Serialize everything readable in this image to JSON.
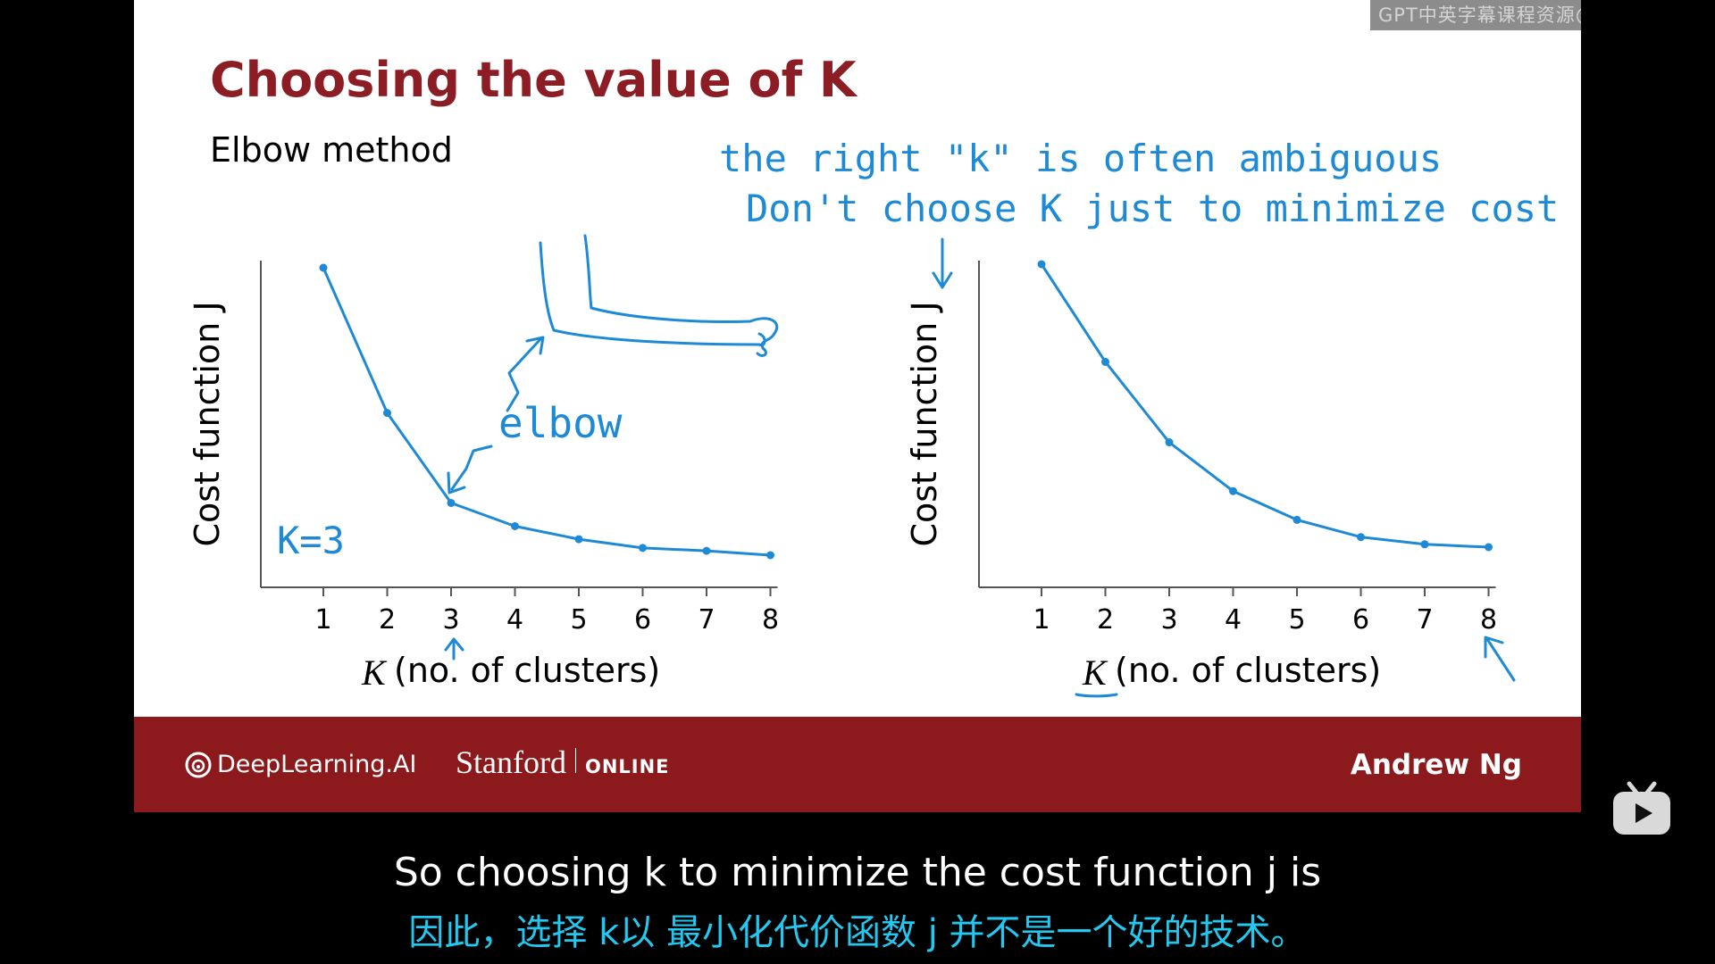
{
  "watermark": "GPT中英字幕课程资源@bilibili.com",
  "slide": {
    "title": "Choosing the value of K",
    "subtitle": "Elbow method",
    "annotations": {
      "ambiguous": "the right \"k\" is often ambiguous",
      "dont_choose": "Don't choose K just to minimize cost J",
      "elbow": "elbow",
      "k_eq": "K=3"
    }
  },
  "chart_data": [
    {
      "type": "line",
      "x": [
        1,
        2,
        3,
        4,
        5,
        6,
        7,
        8
      ],
      "y": [
        100,
        50,
        19,
        11,
        6.5,
        3.5,
        2.5,
        1
      ],
      "xlabel_var": "K",
      "xlabel": "(no. of clusters)",
      "ylabel": "Cost function J",
      "ticks": [
        "1",
        "2",
        "3",
        "4",
        "5",
        "6",
        "7",
        "8"
      ],
      "ylim": [
        0,
        110
      ],
      "grid": false
    },
    {
      "type": "line",
      "x": [
        1,
        2,
        3,
        4,
        5,
        6,
        7,
        8
      ],
      "y": [
        100,
        66,
        38,
        21,
        11,
        5,
        2.5,
        1.5
      ],
      "xlabel_var": "K",
      "xlabel": "(no. of clusters)",
      "ylabel": "Cost function J",
      "ticks": [
        "1",
        "2",
        "3",
        "4",
        "5",
        "6",
        "7",
        "8"
      ],
      "ylim": [
        0,
        110
      ],
      "grid": false
    }
  ],
  "footer": {
    "brand1": "DeepLearning.AI",
    "brand2": "Stanford",
    "brand2_sub": "ONLINE",
    "author": "Andrew Ng"
  },
  "subtitles": {
    "en": "So choosing k to minimize the cost function j is",
    "zh": "因此，选择 k以 最小化代价函数 j 并不是一个好的技术。"
  },
  "colors": {
    "ink": "#1e8ad6",
    "title": "#8c1d24",
    "footer": "#8c1a1d",
    "sub_zh": "#22c8f0"
  },
  "player": {
    "icon": "bilibili-tv-icon"
  }
}
